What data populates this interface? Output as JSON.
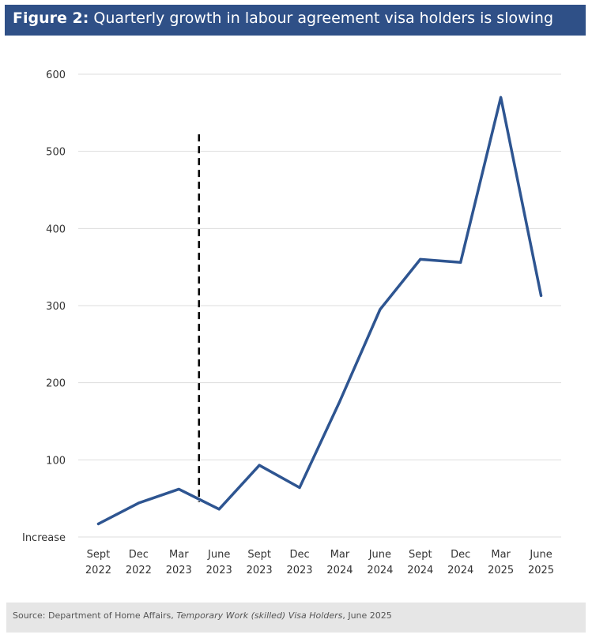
{
  "header": {
    "figure_label": "Figure 2:",
    "title": "Quarterly growth in labour agreement visa holders is slowing"
  },
  "colors": {
    "header_bg": "#2f5087",
    "line": "#2e5591",
    "grid": "#dddddd",
    "footer_bg": "#e6e6e6"
  },
  "chart_data": {
    "type": "line",
    "title": "Quarterly growth in labour agreement visa holders is slowing",
    "xlabel": "",
    "ylabel": "",
    "ylim": [
      0,
      600
    ],
    "yticks": [
      {
        "value": 0,
        "label": "Increase"
      },
      {
        "value": 100,
        "label": "100"
      },
      {
        "value": 200,
        "label": "200"
      },
      {
        "value": 300,
        "label": "300"
      },
      {
        "value": 400,
        "label": "400"
      },
      {
        "value": 500,
        "label": "500"
      },
      {
        "value": 600,
        "label": "600"
      }
    ],
    "categories": [
      [
        "Sept",
        "2022"
      ],
      [
        "Dec",
        "2022"
      ],
      [
        "Mar",
        "2023"
      ],
      [
        "June",
        "2023"
      ],
      [
        "Sept",
        "2023"
      ],
      [
        "Dec",
        "2023"
      ],
      [
        "Mar",
        "2024"
      ],
      [
        "June",
        "2024"
      ],
      [
        "Sept",
        "2024"
      ],
      [
        "Dec",
        "2024"
      ],
      [
        "Mar",
        "2025"
      ],
      [
        "June",
        "2025"
      ]
    ],
    "series": [
      {
        "name": "Increase",
        "values": [
          17,
          44,
          62,
          36,
          93,
          64,
          176,
          295,
          360,
          356,
          570,
          313
        ]
      }
    ],
    "annotations": [
      {
        "type": "vertical-dashed-line",
        "x_between": [
          "Mar 2023",
          "June 2023"
        ],
        "y_from": 45,
        "y_to": 522
      }
    ],
    "grid": true
  },
  "footer": {
    "source_prefix": "Source: Department of Home Affairs, ",
    "source_title": "Temporary Work (skilled) Visa Holders",
    "source_suffix": ", June 2025"
  }
}
